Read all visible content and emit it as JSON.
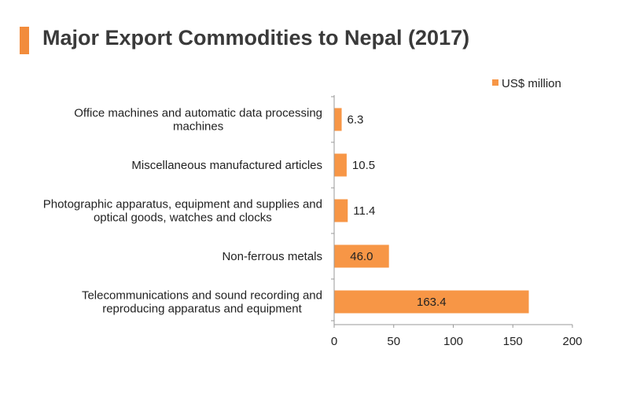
{
  "title": "Major Export Commodities to Nepal (2017)",
  "colors": {
    "accent": "#f28c3c",
    "bar": "#f79646"
  },
  "chart_data": {
    "type": "bar",
    "orientation": "horizontal",
    "title": "Major Export Commodities to Nepal (2017)",
    "categories": [
      [
        "Office machines and automatic data processing",
        "machines"
      ],
      [
        "Miscellaneous manufactured articles"
      ],
      [
        "Photographic apparatus, equipment and supplies and",
        "optical goods, watches and clocks"
      ],
      [
        "Non-ferrous metals"
      ],
      [
        "Telecommunications and sound recording and",
        "reproducing apparatus and equipment"
      ]
    ],
    "series": [
      {
        "name": "US$ million",
        "values": [
          6.3,
          10.5,
          11.4,
          46.0,
          163.4
        ],
        "labels": [
          "6.3",
          "10.5",
          "11.4",
          "46.0",
          "163.4"
        ]
      }
    ],
    "xlim": [
      0,
      200
    ],
    "xticks": [
      0,
      50,
      100,
      150,
      200
    ],
    "grid": false,
    "legend": "top-right"
  }
}
